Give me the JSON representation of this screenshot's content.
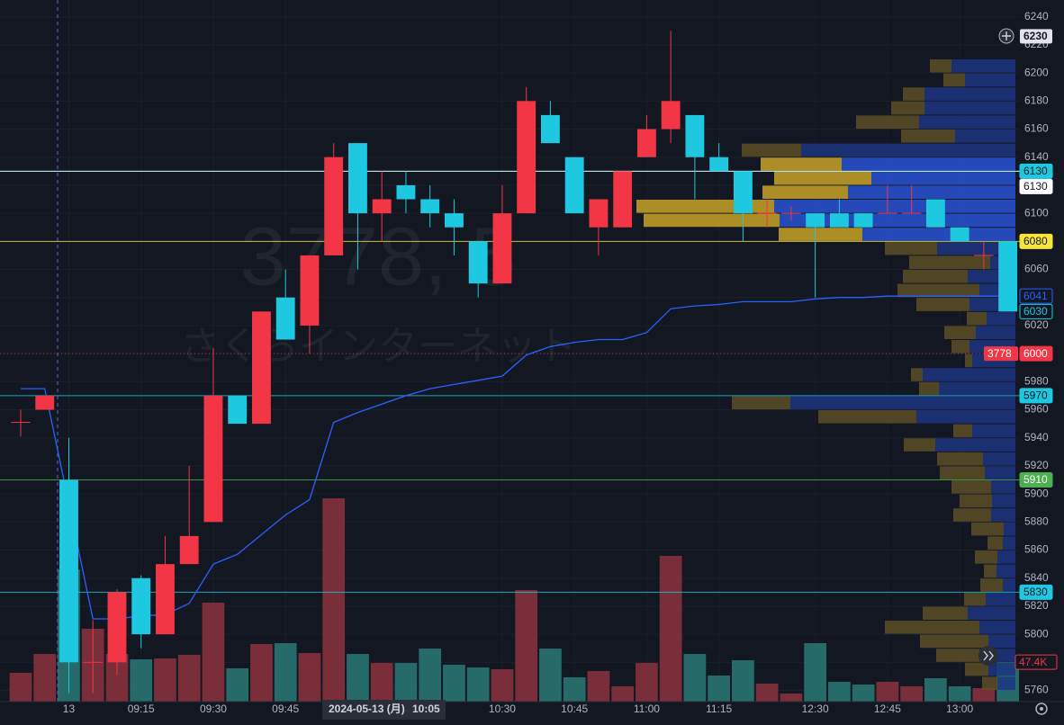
{
  "chart_data": {
    "type": "candlestick",
    "watermark": "3778, 5",
    "subtitle": "さくらインターネット",
    "categories": [
      null,
      null,
      "13",
      null,
      null,
      "09:15",
      null,
      null,
      "09:30",
      null,
      null,
      "09:45",
      null,
      null,
      null,
      null,
      null,
      null,
      null,
      null,
      "10:30",
      null,
      null,
      "10:45",
      null,
      null,
      "11:00",
      null,
      null,
      "11:15",
      null,
      null,
      null,
      "12:30",
      null,
      null,
      "12:45",
      null,
      null,
      "13:00",
      null,
      null
    ],
    "open": [
      5951,
      5960,
      5910,
      5780,
      5780,
      5840,
      5800,
      5850,
      5880,
      5970,
      5950,
      6040,
      6020,
      6070,
      6150,
      6100,
      6120,
      6110,
      6100,
      6080,
      6050,
      6100,
      6170,
      6140,
      6090,
      6090,
      6140,
      6160,
      6170,
      6140,
      6130,
      6100,
      6100,
      6100,
      6100,
      6100,
      6100,
      6100,
      6110,
      6090,
      6070,
      6080
    ],
    "high": [
      5960,
      5970,
      5940,
      5810,
      5832,
      5842,
      5870,
      5920,
      6004,
      5970,
      6030,
      6060,
      6070,
      6150,
      6150,
      6130,
      6130,
      6120,
      6110,
      6080,
      6120,
      6190,
      6180,
      6140,
      6110,
      6130,
      6170,
      6230,
      6170,
      6150,
      6130,
      6110,
      6105,
      6100,
      6110,
      6100,
      6120,
      6120,
      6110,
      6090,
      6080,
      6080
    ],
    "low": [
      5941,
      5960,
      5758,
      5758,
      5771,
      5790,
      5800,
      5850,
      5880,
      5950,
      5950,
      6010,
      6000,
      6070,
      6060,
      6080,
      6100,
      6090,
      6070,
      6040,
      6050,
      6100,
      6150,
      6100,
      6070,
      6090,
      6140,
      6150,
      6110,
      6130,
      6080,
      6090,
      6095,
      6040,
      6090,
      6090,
      6100,
      6100,
      6090,
      6080,
      6060,
      6030
    ],
    "close": [
      5951,
      5970,
      5780,
      5780,
      5830,
      5800,
      5850,
      5870,
      5970,
      5950,
      6030,
      6010,
      6070,
      6140,
      6100,
      6110,
      6110,
      6100,
      6090,
      6050,
      6100,
      6180,
      6150,
      6100,
      6110,
      6130,
      6160,
      6180,
      6140,
      6130,
      6100,
      6100,
      6100,
      6090,
      6090,
      6090,
      6100,
      6100,
      6090,
      6080,
      6070,
      6030
    ],
    "up_color": "#f23645",
    "down_color": "#1ec8e0",
    "volume": [
      34600,
      57200,
      158800,
      87500,
      57200,
      50800,
      51800,
      56200,
      118800,
      40000,
      69100,
      70200,
      58300,
      244100,
      57200,
      46400,
      46400,
      63700,
      44300,
      41000,
      38900,
      133900,
      63700,
      29200,
      36700,
      18400,
      46400,
      175000,
      57200,
      31300,
      49700,
      21600,
      9700,
      70200,
      23800,
      20500,
      23800,
      18400,
      28100,
      18400,
      16200,
      47400
    ],
    "volume_up_color": "#7a2e3a",
    "volume_down_color": "#266a6a",
    "last_volume_label": "47.4K",
    "vwap": {
      "color": "#2962ff",
      "values": [
        5975,
        5975,
        5893,
        5811,
        5811,
        5813,
        5814,
        5822,
        5850,
        5857,
        5871,
        5885,
        5896,
        5951,
        5958,
        5964,
        5970,
        5975,
        5978,
        5981,
        5984,
        5999,
        6005,
        6008,
        6010,
        6010,
        6015,
        6032,
        6034,
        6035,
        6037,
        6037,
        6037,
        6039,
        6040,
        6040,
        6041,
        6041,
        6041,
        6041,
        6041,
        6041
      ]
    },
    "volume_profile": {
      "prices": [
        6205,
        6195,
        6185,
        6175,
        6165,
        6155,
        6145,
        6135,
        6125,
        6115,
        6105,
        6095,
        6085,
        6075,
        6065,
        6055,
        6045,
        6035,
        6025,
        6015,
        6005,
        5995,
        5985,
        5975,
        5965,
        5955,
        5945,
        5935,
        5925,
        5915,
        5905,
        5895,
        5885,
        5875,
        5865,
        5855,
        5845,
        5835,
        5825,
        5815,
        5805,
        5795,
        5785,
        5775,
        5765
      ],
      "up": [
        24,
        24,
        24,
        37,
        70,
        60,
        66,
        90,
        108,
        95,
        153,
        151,
        93,
        58,
        90,
        72,
        91,
        59,
        22,
        35,
        20,
        8,
        13,
        22,
        65,
        109,
        21,
        35,
        51,
        50,
        44,
        36,
        42,
        36,
        17,
        25,
        14,
        25,
        24,
        50,
        105,
        76,
        48,
        26,
        17
      ],
      "down": [
        71,
        56,
        101,
        101,
        107,
        67,
        238,
        193,
        160,
        186,
        268,
        262,
        170,
        87,
        28,
        53,
        40,
        51,
        32,
        44,
        51,
        48,
        103,
        85,
        250,
        110,
        48,
        89,
        36,
        34,
        27,
        26,
        27,
        13,
        14,
        20,
        21,
        14,
        33,
        53,
        40,
        30,
        40,
        30,
        20
      ],
      "value_area": [
        6080,
        6140
      ],
      "up_color": "#5c4f26",
      "up_color_va": "#c9a227",
      "down_color": "#1d3580",
      "down_color_va": "#2a52d4"
    },
    "price_lines": [
      {
        "value": 6130,
        "color": "#1ec8e0",
        "line": "solid",
        "fill": true
      },
      {
        "value": 6130,
        "color": "#ffffff",
        "line": "solid",
        "fill": true
      },
      {
        "value": 6080,
        "color": "#f5e53b",
        "line": "solid",
        "fill": true
      },
      {
        "value": 6041,
        "color": "#2962ff",
        "line": "none",
        "fill": false
      },
      {
        "value": 6030,
        "color": "#1ec8e0",
        "line": "none",
        "fill": false
      },
      {
        "value": 6000,
        "color": "#f23645",
        "line": "dotted",
        "fill": true
      },
      {
        "value": 5970,
        "color": "#1ec8e0",
        "line": "solid",
        "fill": true
      },
      {
        "value": 5910,
        "color": "#4caf50",
        "line": "solid",
        "fill": true
      },
      {
        "value": 5830,
        "color": "#1ec8e0",
        "line": "solid",
        "fill": true
      }
    ],
    "symbol_label": "3778",
    "crosshair": {
      "price": 6230,
      "date": "2024-05-13 (月)",
      "time": "10:05"
    },
    "ylim": [
      5752,
      6252
    ],
    "yticks": [
      5760,
      5780,
      5800,
      5820,
      5840,
      5860,
      5880,
      5900,
      5920,
      5940,
      5960,
      5980,
      6000,
      6020,
      6040,
      6060,
      6080,
      6100,
      6120,
      6140,
      6160,
      6180,
      6200,
      6220,
      6240
    ],
    "grid": true
  }
}
